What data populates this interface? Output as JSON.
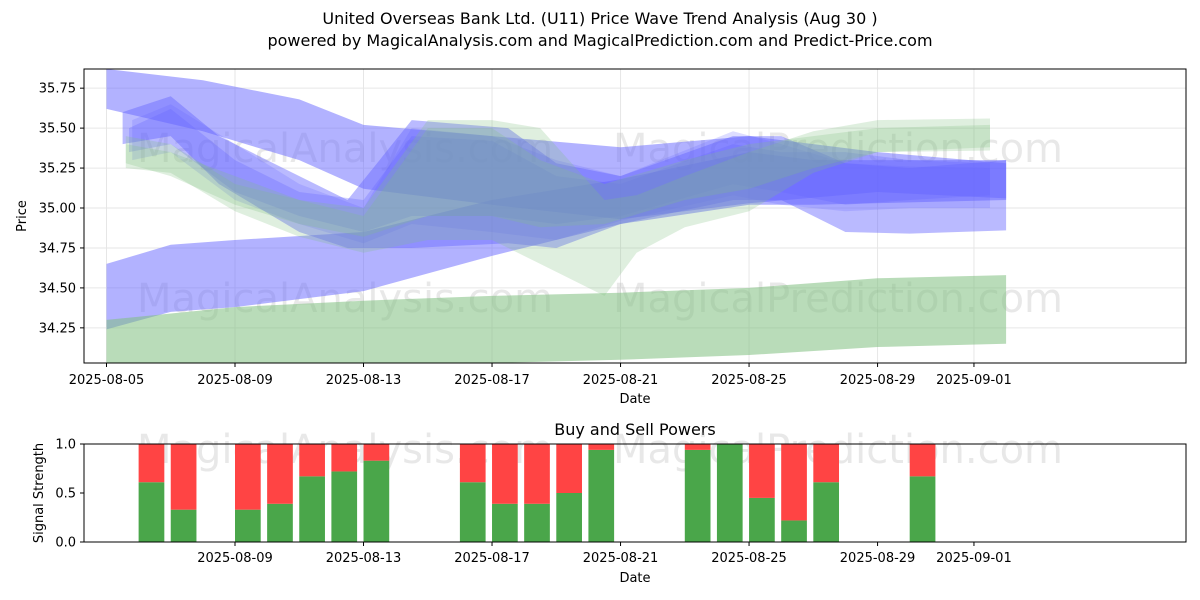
{
  "title_line1": "United Overseas Bank Ltd. (U11) Price Wave Trend Analysis (Aug 30 )",
  "title_line2": "powered by MagicalAnalysis.com and MagicalPrediction.com and Predict-Price.com",
  "watermarks": [
    "MagicalAnalysis.com",
    "MagicalPrediction.com"
  ],
  "colors": {
    "buy": "#4aa64a",
    "sell": "#ff4444",
    "blue_band": "#6666ff",
    "green_band": "#7fbf7f"
  },
  "chart_data": [
    {
      "type": "area",
      "xlabel": "Date",
      "ylabel": "Price",
      "xlim": [
        -0.7,
        33.6
      ],
      "ylim": [
        34.03,
        35.87
      ],
      "x_tick_labels": [
        "2025-08-05",
        "2025-08-09",
        "2025-08-13",
        "2025-08-17",
        "2025-08-21",
        "2025-08-25",
        "2025-08-29",
        "2025-09-01"
      ],
      "x_tick_days": [
        0,
        4,
        8,
        12,
        16,
        20,
        24,
        27
      ],
      "y_ticks": [
        34.25,
        34.5,
        34.75,
        35.0,
        35.25,
        35.5,
        35.75
      ],
      "y_tick_labels": [
        "34.25",
        "34.50",
        "34.75",
        "35.00",
        "35.25",
        "35.50",
        "35.75"
      ],
      "series": [
        {
          "name": "blue-band-1",
          "color": "blue",
          "opacity": 0.5,
          "x": [
            0,
            3,
            6,
            8,
            12,
            16,
            20,
            24,
            28
          ],
          "upper": [
            35.87,
            35.8,
            35.68,
            35.52,
            35.45,
            35.38,
            35.45,
            35.35,
            35.28
          ],
          "lower": [
            35.62,
            35.48,
            35.3,
            35.12,
            35.02,
            34.93,
            35.03,
            35.1,
            35.06
          ]
        },
        {
          "name": "blue-band-2",
          "color": "blue",
          "opacity": 0.5,
          "x": [
            0,
            2,
            4,
            8,
            12,
            16,
            20,
            22,
            28
          ],
          "upper": [
            34.65,
            34.77,
            34.8,
            34.85,
            35.05,
            35.18,
            35.35,
            35.3,
            35.3
          ],
          "lower": [
            34.24,
            34.35,
            34.38,
            34.48,
            34.7,
            34.9,
            35.02,
            35.02,
            35.05
          ]
        },
        {
          "name": "blue-band-3",
          "color": "blue",
          "opacity": 0.45,
          "x": [
            0.5,
            2,
            3.5,
            6,
            7.5,
            9.5,
            12.5,
            14,
            16,
            19.5,
            21,
            23,
            25,
            28
          ],
          "upper": [
            35.6,
            35.7,
            35.45,
            35.2,
            35.05,
            35.55,
            35.5,
            35.28,
            35.2,
            35.45,
            35.45,
            35.28,
            35.25,
            35.3
          ],
          "lower": [
            35.4,
            35.45,
            35.15,
            34.85,
            34.75,
            34.75,
            34.78,
            34.75,
            34.9,
            35.05,
            35.05,
            34.85,
            34.84,
            34.86
          ]
        },
        {
          "name": "blue-band-4",
          "color": "blue",
          "opacity": 0.3,
          "x": [
            0.7,
            2,
            4,
            6,
            8,
            9.5,
            12,
            14,
            16,
            19.5,
            21,
            23,
            25,
            27.5
          ],
          "upper": [
            35.5,
            35.62,
            35.3,
            35.1,
            35.05,
            35.45,
            35.42,
            35.2,
            35.15,
            35.4,
            35.35,
            35.35,
            35.3,
            35.28
          ],
          "lower": [
            35.35,
            35.4,
            35.1,
            34.95,
            34.85,
            34.95,
            34.95,
            34.9,
            34.95,
            35.15,
            35.1,
            35.02,
            35.05,
            35.08
          ]
        },
        {
          "name": "blue-band-5",
          "color": "blue",
          "opacity": 0.22,
          "x": [
            0.8,
            2,
            4,
            6,
            8,
            9.5,
            12,
            14,
            16,
            19.5,
            21,
            23,
            25,
            27.5
          ],
          "upper": [
            35.55,
            35.65,
            35.4,
            35.15,
            35.0,
            35.5,
            35.45,
            35.3,
            35.2,
            35.48,
            35.4,
            35.28,
            35.26,
            35.25
          ],
          "lower": [
            35.3,
            35.35,
            35.05,
            34.9,
            34.78,
            34.9,
            34.85,
            34.8,
            34.92,
            35.08,
            35.02,
            34.98,
            35.0,
            35.0
          ]
        },
        {
          "name": "green-band-1",
          "color": "green",
          "opacity": 0.55,
          "x": [
            0,
            4,
            8,
            12,
            16,
            20,
            24,
            28
          ],
          "upper": [
            34.3,
            34.38,
            34.42,
            34.45,
            34.47,
            34.5,
            34.56,
            34.58
          ],
          "lower": [
            34.0,
            34.0,
            34.02,
            34.03,
            34.05,
            34.08,
            34.13,
            34.15
          ]
        },
        {
          "name": "green-band-2",
          "color": "green",
          "opacity": 0.25,
          "x": [
            0.6,
            2,
            4,
            6,
            8,
            10,
            12,
            13.5,
            15.5,
            16.5,
            18,
            20,
            22,
            24,
            27.5
          ],
          "upper": [
            35.45,
            35.4,
            35.15,
            35.05,
            35.0,
            35.55,
            35.55,
            35.5,
            35.05,
            35.08,
            35.2,
            35.35,
            35.48,
            35.55,
            35.56
          ],
          "lower": [
            35.25,
            35.22,
            34.98,
            34.82,
            34.72,
            34.8,
            34.8,
            34.65,
            34.45,
            34.72,
            34.88,
            34.98,
            35.22,
            35.35,
            35.36
          ]
        },
        {
          "name": "green-band-3",
          "color": "green",
          "opacity": 0.25,
          "x": [
            0.6,
            2,
            4,
            6,
            8,
            10,
            12,
            13.5,
            15.5,
            18,
            20,
            22,
            24,
            27.5
          ],
          "upper": [
            35.4,
            35.35,
            35.2,
            35.05,
            34.95,
            35.5,
            35.5,
            35.3,
            35.15,
            35.3,
            35.4,
            35.45,
            35.5,
            35.52
          ],
          "lower": [
            35.28,
            35.2,
            35.02,
            34.9,
            34.82,
            34.95,
            34.95,
            34.88,
            34.9,
            35.05,
            35.12,
            35.25,
            35.35,
            35.38
          ]
        }
      ]
    },
    {
      "type": "bar",
      "title": "Buy and Sell Powers",
      "xlabel": "Date",
      "ylabel": "Signal Strength",
      "xlim": [
        -0.7,
        33.6
      ],
      "ylim": [
        0,
        1
      ],
      "y_ticks": [
        0,
        0.5,
        1
      ],
      "y_tick_labels": [
        "0.0",
        "0.5",
        "1.0"
      ],
      "x_tick_labels": [
        "2025-08-09",
        "2025-08-13",
        "2025-08-17",
        "2025-08-21",
        "2025-08-25",
        "2025-08-29",
        "2025-09-01"
      ],
      "x_tick_days": [
        4,
        8,
        12,
        16,
        20,
        24,
        27
      ],
      "days": [
        1.4,
        2.4,
        4.4,
        5.4,
        6.4,
        7.4,
        8.4,
        11.4,
        12.4,
        13.4,
        14.4,
        15.4,
        18.4,
        19.4,
        20.4,
        21.4,
        22.4,
        25.4
      ],
      "buy": [
        0.61,
        0.33,
        0.33,
        0.39,
        0.67,
        0.72,
        0.83,
        0.61,
        0.39,
        0.39,
        0.5,
        0.94,
        0.94,
        1.0,
        0.45,
        0.22,
        0.61,
        0.67
      ],
      "sell": [
        0.39,
        0.67,
        0.67,
        0.61,
        0.33,
        0.28,
        0.17,
        0.39,
        0.61,
        0.61,
        0.5,
        0.06,
        0.06,
        0.0,
        0.55,
        0.78,
        0.39,
        0.33
      ]
    }
  ]
}
